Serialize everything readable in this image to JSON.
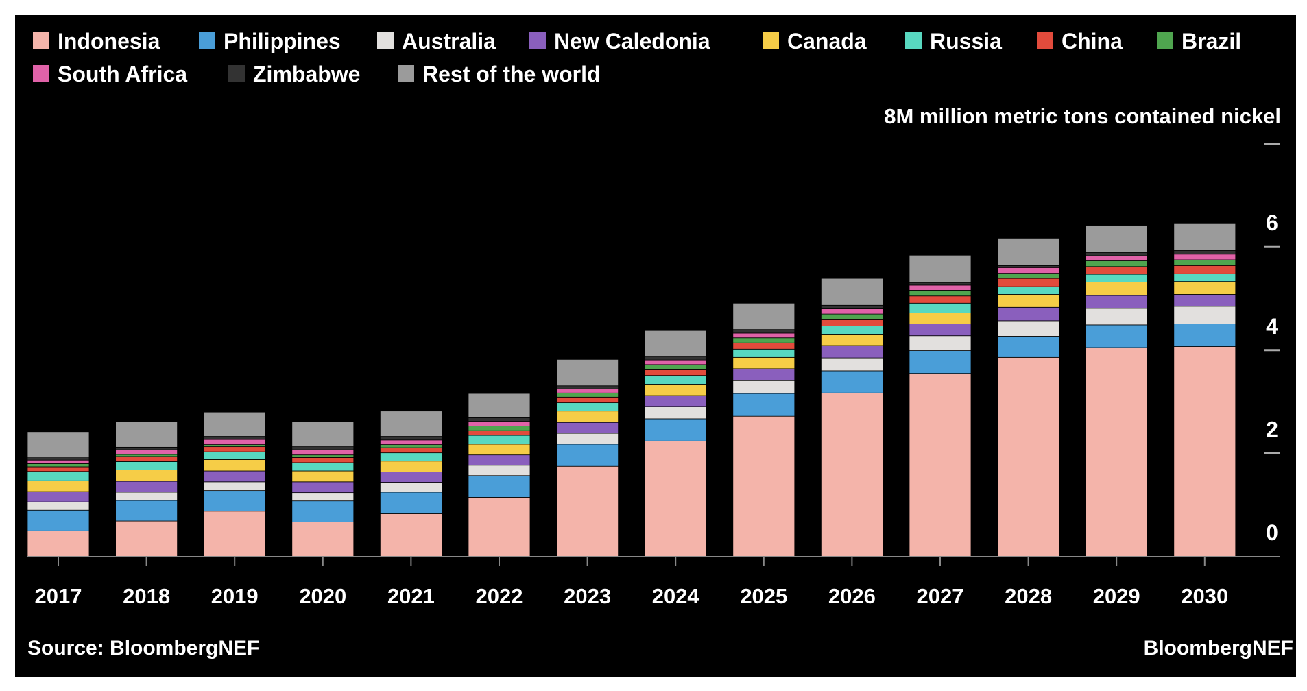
{
  "chart_data": {
    "type": "bar",
    "stacked": true,
    "unit_label": "8M million metric tons contained nickel",
    "source": "Source: BloombergNEF",
    "brand": "BloombergNEF",
    "categories": [
      "2017",
      "2018",
      "2019",
      "2020",
      "2021",
      "2022",
      "2023",
      "2024",
      "2025",
      "2026",
      "2027",
      "2028",
      "2029",
      "2030"
    ],
    "ylim": [
      0,
      8
    ],
    "yticks": [
      0,
      2,
      4,
      6,
      8
    ],
    "ytick_labels": [
      "0",
      "2",
      "4",
      "6"
    ],
    "y_axis_side": "right",
    "grid": false,
    "legend_position": "top",
    "series": [
      {
        "name": "Indonesia",
        "color": "#f4b4aa",
        "values": [
          0.5,
          0.69,
          0.88,
          0.67,
          0.83,
          1.15,
          1.75,
          2.24,
          2.72,
          3.17,
          3.55,
          3.86,
          4.05,
          4.07
        ]
      },
      {
        "name": "Philippines",
        "color": "#4a9ed8",
        "values": [
          0.4,
          0.4,
          0.4,
          0.41,
          0.42,
          0.42,
          0.43,
          0.43,
          0.44,
          0.43,
          0.44,
          0.41,
          0.44,
          0.44
        ]
      },
      {
        "name": "Australia",
        "color": "#e2e0de",
        "values": [
          0.16,
          0.16,
          0.17,
          0.16,
          0.19,
          0.2,
          0.21,
          0.24,
          0.25,
          0.25,
          0.29,
          0.3,
          0.32,
          0.34
        ]
      },
      {
        "name": "New Caledonia",
        "color": "#8a5fbd",
        "values": [
          0.2,
          0.21,
          0.21,
          0.21,
          0.2,
          0.2,
          0.21,
          0.21,
          0.23,
          0.24,
          0.23,
          0.26,
          0.25,
          0.23
        ]
      },
      {
        "name": "Canada",
        "color": "#f6cd47",
        "values": [
          0.21,
          0.22,
          0.22,
          0.21,
          0.21,
          0.21,
          0.22,
          0.22,
          0.22,
          0.22,
          0.21,
          0.25,
          0.26,
          0.25
        ]
      },
      {
        "name": "Russia",
        "color": "#58d8c0",
        "values": [
          0.18,
          0.16,
          0.15,
          0.16,
          0.16,
          0.17,
          0.16,
          0.17,
          0.16,
          0.16,
          0.19,
          0.15,
          0.15,
          0.15
        ]
      },
      {
        "name": "China",
        "color": "#e24b3c",
        "values": [
          0.09,
          0.1,
          0.1,
          0.1,
          0.1,
          0.09,
          0.11,
          0.11,
          0.12,
          0.12,
          0.14,
          0.16,
          0.15,
          0.16
        ]
      },
      {
        "name": "Brazil",
        "color": "#4fa54f",
        "values": [
          0.06,
          0.04,
          0.04,
          0.05,
          0.06,
          0.09,
          0.08,
          0.1,
          0.1,
          0.11,
          0.11,
          0.1,
          0.11,
          0.11
        ]
      },
      {
        "name": "South Africa",
        "color": "#e062a8",
        "values": [
          0.07,
          0.09,
          0.1,
          0.1,
          0.09,
          0.09,
          0.08,
          0.09,
          0.09,
          0.1,
          0.1,
          0.11,
          0.1,
          0.11
        ]
      },
      {
        "name": "Zimbabwe",
        "color": "#333333",
        "values": [
          0.06,
          0.05,
          0.06,
          0.06,
          0.07,
          0.07,
          0.06,
          0.07,
          0.07,
          0.07,
          0.05,
          0.04,
          0.06,
          0.07
        ]
      },
      {
        "name": "Rest of the world",
        "color": "#9b9b9b",
        "values": [
          0.49,
          0.49,
          0.47,
          0.49,
          0.49,
          0.47,
          0.51,
          0.5,
          0.51,
          0.52,
          0.53,
          0.53,
          0.53,
          0.52
        ]
      }
    ]
  }
}
